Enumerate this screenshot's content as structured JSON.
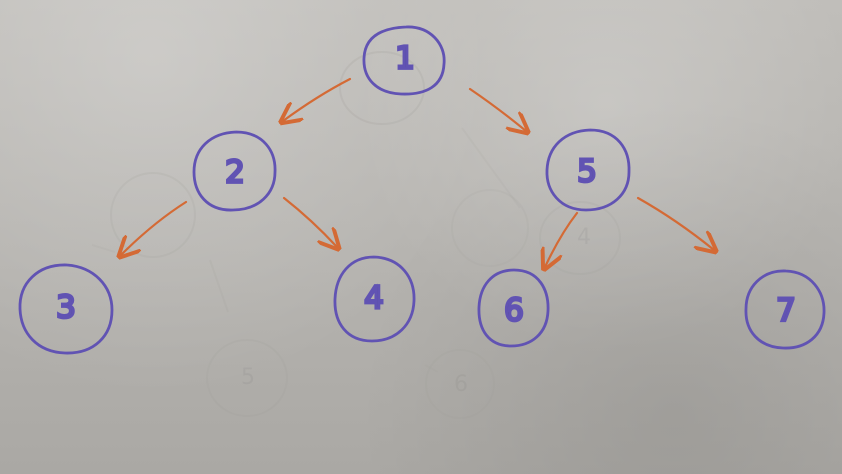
{
  "diagram": {
    "colors": {
      "node_stroke": "#6153b3",
      "edge": "#d46a35",
      "ghost": "#9c9a96"
    },
    "nodes": [
      {
        "id": "1",
        "label": "1"
      },
      {
        "id": "2",
        "label": "2"
      },
      {
        "id": "5",
        "label": "5"
      },
      {
        "id": "3",
        "label": "3"
      },
      {
        "id": "4",
        "label": "4"
      },
      {
        "id": "6",
        "label": "6"
      },
      {
        "id": "7",
        "label": "7"
      }
    ],
    "edges": [
      {
        "from": "1",
        "to": "2"
      },
      {
        "from": "1",
        "to": "5"
      },
      {
        "from": "2",
        "to": "3"
      },
      {
        "from": "2",
        "to": "4"
      },
      {
        "from": "5",
        "to": "6"
      },
      {
        "from": "5",
        "to": "7"
      }
    ]
  }
}
